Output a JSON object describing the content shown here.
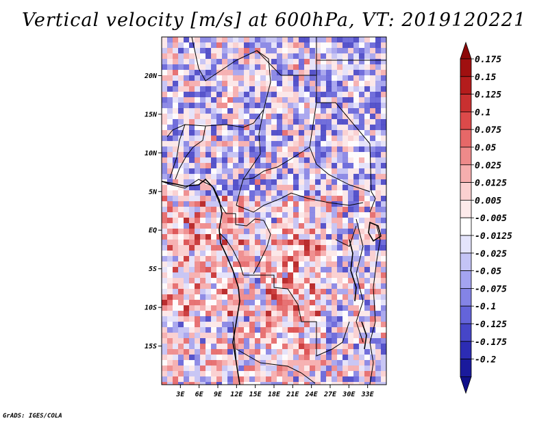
{
  "title": "Vertical velocity [m/s] at 600hPa, VT: 2019120221",
  "credit": "GrADS: IGES/COLA",
  "map": {
    "lon_range": [
      0,
      36
    ],
    "lat_range": [
      -20,
      25
    ],
    "lat_ticks": [
      {
        "value": 20,
        "label": "20N"
      },
      {
        "value": 15,
        "label": "15N"
      },
      {
        "value": 10,
        "label": "10N"
      },
      {
        "value": 5,
        "label": "5N"
      },
      {
        "value": 0,
        "label": "EQ"
      },
      {
        "value": -5,
        "label": "5S"
      },
      {
        "value": -10,
        "label": "10S"
      },
      {
        "value": -15,
        "label": "15S"
      }
    ],
    "lon_ticks": [
      {
        "value": 3,
        "label": "3E"
      },
      {
        "value": 6,
        "label": "6E"
      },
      {
        "value": 9,
        "label": "9E"
      },
      {
        "value": 12,
        "label": "12E"
      },
      {
        "value": 15,
        "label": "15E"
      },
      {
        "value": 18,
        "label": "18E"
      },
      {
        "value": 21,
        "label": "21E"
      },
      {
        "value": 24,
        "label": "24E"
      },
      {
        "value": 27,
        "label": "27E"
      },
      {
        "value": 30,
        "label": "30E"
      },
      {
        "value": 33,
        "label": "33E"
      }
    ]
  },
  "colorbar": {
    "levels": [
      {
        "label": "0.175",
        "color": "#a01010"
      },
      {
        "label": "0.15",
        "color": "#b41c1c"
      },
      {
        "label": "0.125",
        "color": "#c83030"
      },
      {
        "label": "0.1",
        "color": "#dc4a4a"
      },
      {
        "label": "0.075",
        "color": "#e66868"
      },
      {
        "label": "0.05",
        "color": "#ee8a8a"
      },
      {
        "label": "0.025",
        "color": "#f6aeae"
      },
      {
        "label": "0.0125",
        "color": "#fbd0d0"
      },
      {
        "label": "0.005",
        "color": "#fdeaea"
      },
      {
        "label": "-0.005",
        "color": "#ffffff"
      },
      {
        "label": "-0.0125",
        "color": "#e4e4fc"
      },
      {
        "label": "-0.025",
        "color": "#c4c4f6"
      },
      {
        "label": "-0.05",
        "color": "#a4a4f0"
      },
      {
        "label": "-0.075",
        "color": "#8484e6"
      },
      {
        "label": "-0.1",
        "color": "#6464da"
      },
      {
        "label": "-0.125",
        "color": "#4646c8"
      },
      {
        "label": "-0.175",
        "color": "#2c2cb4"
      },
      {
        "label": "-0.2",
        "color": "#1a1a9c"
      }
    ],
    "top_arrow_color": "#8c0808",
    "bottom_arrow_color": "#10108a"
  }
}
